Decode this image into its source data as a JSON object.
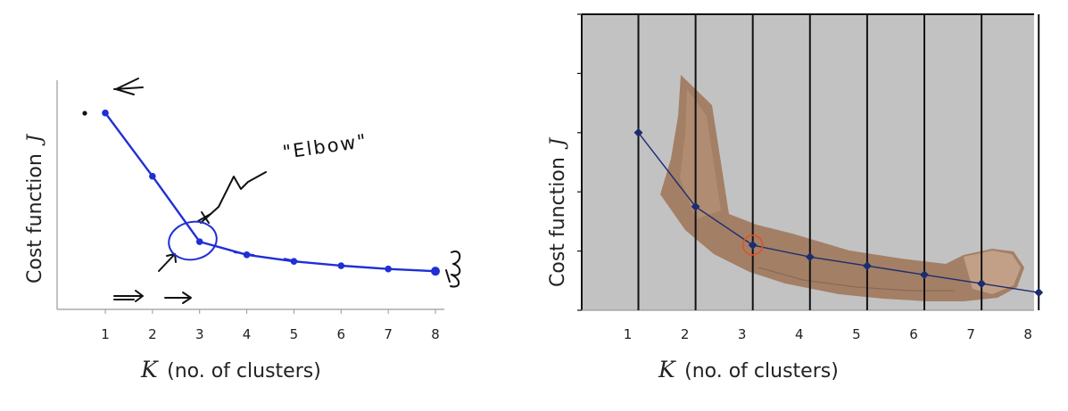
{
  "chart_data": [
    {
      "type": "line",
      "categories": [
        "1",
        "2",
        "3",
        "4",
        "5",
        "6",
        "7",
        "8"
      ],
      "x": [
        1,
        2,
        3,
        4,
        5,
        6,
        7,
        8
      ],
      "series": [
        {
          "values": [
            9.0,
            6.1,
            3.1,
            2.5,
            2.2,
            2.0,
            1.85,
            1.75
          ]
        }
      ],
      "ylabel_text": "Cost function",
      "ylabel_var": "J",
      "xlabel_var": "K",
      "xlabel_text": "(no. of clusters)",
      "ylim": [
        0,
        10.5
      ],
      "annotations": {
        "elbow": "\"Elbow\""
      },
      "color": "#1f2fd6"
    },
    {
      "type": "line",
      "categories": [
        "1",
        "2",
        "3",
        "4",
        "5",
        "6",
        "7",
        "8"
      ],
      "x": [
        1,
        2,
        3,
        4,
        5,
        6,
        7,
        8
      ],
      "series": [
        {
          "values": [
            3.0,
            1.75,
            1.1,
            0.9,
            0.75,
            0.6,
            0.45,
            0.3
          ]
        }
      ],
      "ylabel_text": "Cost function",
      "ylabel_var": "J",
      "xlabel_var": "K",
      "xlabel_text": "(no. of clusters)",
      "ylim": [
        0,
        5
      ],
      "grid": true,
      "highlight_index": 2,
      "background": "#c2c2c2",
      "color": "#1c2d6e",
      "highlight_color": "#e0502a"
    }
  ]
}
